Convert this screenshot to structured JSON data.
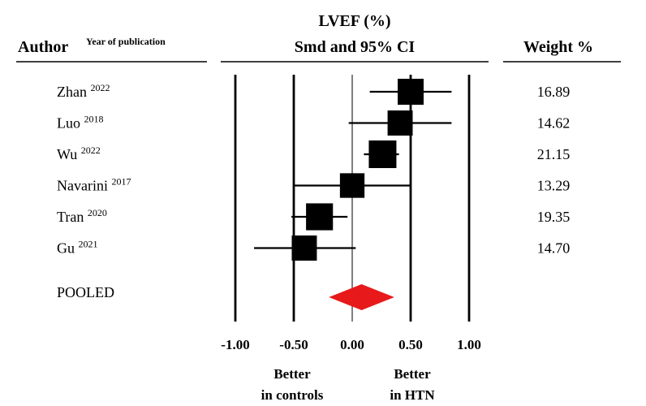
{
  "header": {
    "author_label": "Author",
    "year_label": "Year of publication",
    "measure_title": "LVEF (%)",
    "measure_subtitle": "Smd and 95% CI",
    "weight_label": "Weight %"
  },
  "chart_data": {
    "type": "forest",
    "xlim": [
      -1.0,
      1.0
    ],
    "x_ticks": [
      -1.0,
      -0.5,
      0.0,
      0.5,
      1.0
    ],
    "x_tick_labels": [
      "-1.00",
      "-0.50",
      "0.00",
      "0.50",
      "1.00"
    ],
    "studies": [
      {
        "author": "Zhan",
        "year": "2022",
        "smd": 0.5,
        "ci_low": 0.15,
        "ci_high": 0.85,
        "weight": "16.89"
      },
      {
        "author": "Luo",
        "year": "2018",
        "smd": 0.41,
        "ci_low": -0.03,
        "ci_high": 0.85,
        "weight": "14.62"
      },
      {
        "author": "Wu",
        "year": "2022",
        "smd": 0.26,
        "ci_low": 0.1,
        "ci_high": 0.4,
        "weight": "21.15"
      },
      {
        "author": "Navarini",
        "year": "2017",
        "smd": 0.0,
        "ci_low": -0.5,
        "ci_high": 0.5,
        "weight": "13.29"
      },
      {
        "author": "Tran",
        "year": "2020",
        "smd": -0.28,
        "ci_low": -0.52,
        "ci_high": -0.04,
        "weight": "19.35"
      },
      {
        "author": "Gu",
        "year": "2021",
        "smd": -0.41,
        "ci_low": -0.84,
        "ci_high": 0.03,
        "weight": "14.70"
      }
    ],
    "pooled": {
      "label": "POOLED",
      "smd": 0.08,
      "ci_low": -0.2,
      "ci_high": 0.36,
      "color": "#e8191a"
    },
    "annotations": {
      "left": [
        "Better",
        "in controls"
      ],
      "right": [
        "Better",
        "in HTN"
      ]
    },
    "marker_color": "#000000"
  }
}
